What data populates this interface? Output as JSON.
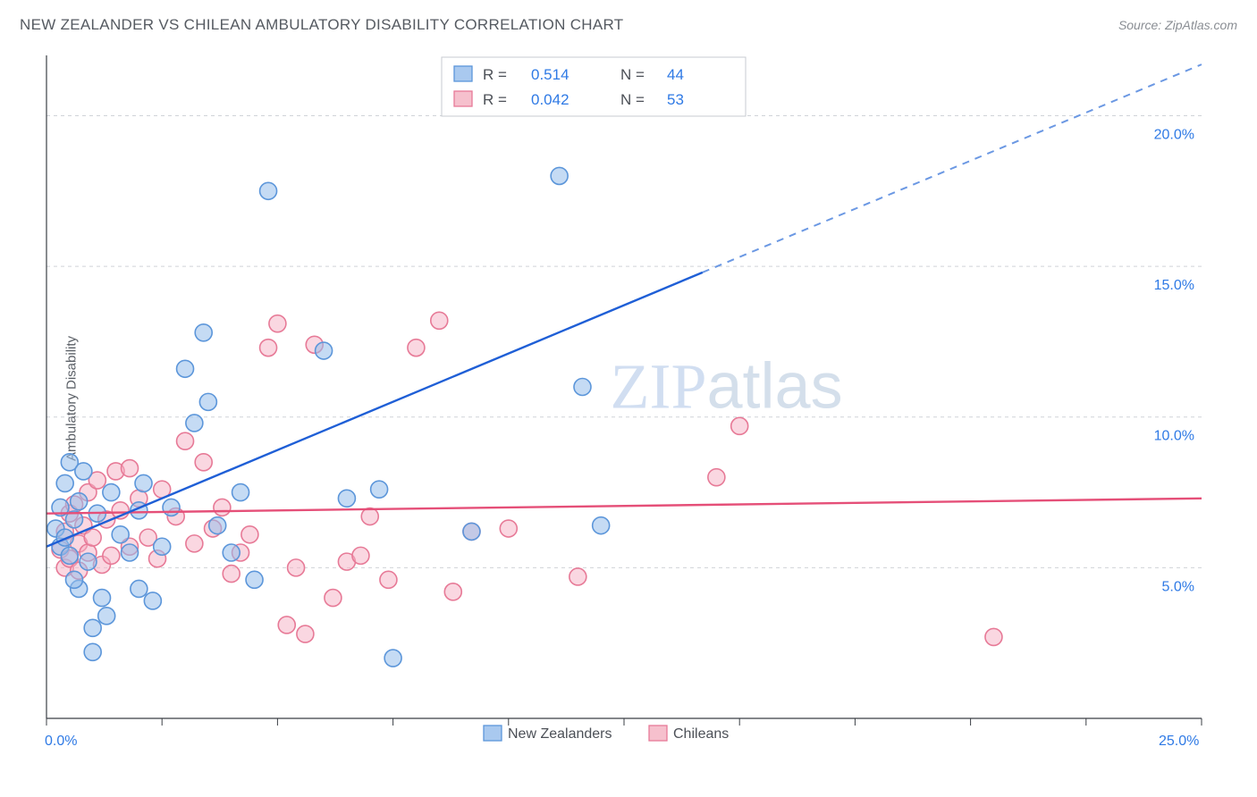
{
  "title": "NEW ZEALANDER VS CHILEAN AMBULATORY DISABILITY CORRELATION CHART",
  "source": "Source: ZipAtlas.com",
  "y_axis_label": "Ambulatory Disability",
  "watermark": {
    "bold": "ZIP",
    "light": "atlas"
  },
  "chart": {
    "type": "scatter",
    "xlim": [
      0,
      25
    ],
    "ylim": [
      0,
      22
    ],
    "y_ticks": [
      5.0,
      10.0,
      15.0,
      20.0
    ],
    "y_tick_labels": [
      "5.0%",
      "10.0%",
      "15.0%",
      "20.0%"
    ],
    "x_origin_label": "0.0%",
    "x_max_label": "25.0%",
    "x_ticks": [
      0,
      2.5,
      5,
      7.5,
      10,
      12.5,
      15,
      17.5,
      20,
      22.5,
      25
    ],
    "background_color": "#ffffff",
    "grid_color": "#d0d3d8",
    "axis_color": "#3b3f45",
    "series": [
      {
        "name": "New Zealanders",
        "color_fill": "#a9c9ef",
        "color_stroke": "#5c96da",
        "r_value": "0.514",
        "n_value": "44",
        "marker_radius": 9.5,
        "trend": {
          "color": "#1f5fd6",
          "start": [
            0,
            5.7
          ],
          "solid_end": [
            14.2,
            14.8
          ],
          "dash_end": [
            25,
            21.7
          ]
        },
        "points": [
          [
            0.2,
            6.3
          ],
          [
            0.3,
            5.7
          ],
          [
            0.3,
            7.0
          ],
          [
            0.4,
            7.8
          ],
          [
            0.4,
            6.0
          ],
          [
            0.5,
            8.5
          ],
          [
            0.5,
            5.4
          ],
          [
            0.6,
            6.6
          ],
          [
            0.7,
            7.2
          ],
          [
            0.7,
            4.3
          ],
          [
            0.8,
            8.2
          ],
          [
            0.9,
            5.2
          ],
          [
            1.0,
            3.0
          ],
          [
            1.0,
            2.2
          ],
          [
            1.1,
            6.8
          ],
          [
            1.2,
            4.0
          ],
          [
            1.3,
            3.4
          ],
          [
            1.4,
            7.5
          ],
          [
            1.6,
            6.1
          ],
          [
            1.8,
            5.5
          ],
          [
            2.0,
            4.3
          ],
          [
            2.0,
            6.9
          ],
          [
            2.1,
            7.8
          ],
          [
            2.3,
            3.9
          ],
          [
            2.5,
            5.7
          ],
          [
            2.7,
            7.0
          ],
          [
            3.0,
            11.6
          ],
          [
            3.2,
            9.8
          ],
          [
            3.4,
            12.8
          ],
          [
            3.5,
            10.5
          ],
          [
            3.7,
            6.4
          ],
          [
            4.0,
            5.5
          ],
          [
            4.2,
            7.5
          ],
          [
            4.5,
            4.6
          ],
          [
            4.8,
            17.5
          ],
          [
            6.0,
            12.2
          ],
          [
            6.5,
            7.3
          ],
          [
            7.2,
            7.6
          ],
          [
            7.5,
            2.0
          ],
          [
            9.2,
            6.2
          ],
          [
            11.1,
            18.0
          ],
          [
            11.6,
            11.0
          ],
          [
            12.0,
            6.4
          ],
          [
            0.6,
            4.6
          ]
        ]
      },
      {
        "name": "Chileans",
        "color_fill": "#f6c0cd",
        "color_stroke": "#e77a97",
        "r_value": "0.042",
        "n_value": "53",
        "marker_radius": 9.5,
        "trend": {
          "color": "#e54f78",
          "start": [
            0,
            6.8
          ],
          "end": [
            25,
            7.3
          ]
        },
        "points": [
          [
            0.3,
            5.6
          ],
          [
            0.4,
            6.2
          ],
          [
            0.4,
            5.0
          ],
          [
            0.5,
            6.8
          ],
          [
            0.5,
            5.3
          ],
          [
            0.6,
            7.1
          ],
          [
            0.7,
            5.8
          ],
          [
            0.7,
            4.9
          ],
          [
            0.8,
            6.4
          ],
          [
            0.9,
            7.5
          ],
          [
            0.9,
            5.5
          ],
          [
            1.0,
            6.0
          ],
          [
            1.1,
            7.9
          ],
          [
            1.2,
            5.1
          ],
          [
            1.3,
            6.6
          ],
          [
            1.4,
            5.4
          ],
          [
            1.5,
            8.2
          ],
          [
            1.6,
            6.9
          ],
          [
            1.8,
            5.7
          ],
          [
            1.8,
            8.3
          ],
          [
            2.0,
            7.3
          ],
          [
            2.2,
            6.0
          ],
          [
            2.4,
            5.3
          ],
          [
            2.5,
            7.6
          ],
          [
            2.8,
            6.7
          ],
          [
            3.0,
            9.2
          ],
          [
            3.2,
            5.8
          ],
          [
            3.4,
            8.5
          ],
          [
            3.6,
            6.3
          ],
          [
            3.8,
            7.0
          ],
          [
            4.0,
            4.8
          ],
          [
            4.2,
            5.5
          ],
          [
            4.4,
            6.1
          ],
          [
            4.8,
            12.3
          ],
          [
            5.0,
            13.1
          ],
          [
            5.2,
            3.1
          ],
          [
            5.4,
            5.0
          ],
          [
            5.6,
            2.8
          ],
          [
            6.2,
            4.0
          ],
          [
            6.5,
            5.2
          ],
          [
            7.0,
            6.7
          ],
          [
            7.4,
            4.6
          ],
          [
            8.0,
            12.3
          ],
          [
            8.5,
            13.2
          ],
          [
            8.8,
            4.2
          ],
          [
            9.2,
            6.2
          ],
          [
            10.0,
            6.3
          ],
          [
            11.5,
            4.7
          ],
          [
            14.5,
            8.0
          ],
          [
            15.0,
            9.7
          ],
          [
            20.5,
            2.7
          ],
          [
            5.8,
            12.4
          ],
          [
            6.8,
            5.4
          ]
        ]
      }
    ],
    "stats_legend": {
      "r_label": "R  =",
      "n_label": "N  ="
    },
    "bottom_legend": {
      "series1": "New Zealanders",
      "series2": "Chileans"
    }
  }
}
